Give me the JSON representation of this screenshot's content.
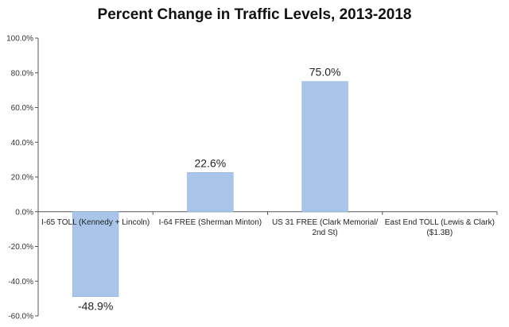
{
  "chart_data": {
    "type": "bar",
    "title": "Percent Change in Traffic Levels, 2013-2018",
    "xlabel": "",
    "ylabel": "",
    "categories": [
      [
        "I-65 TOLL (Kennedy + Lincoln)"
      ],
      [
        "I-64 FREE (Sherman Minton)"
      ],
      [
        "US 31 FREE (Clark Memorial/",
        "2nd St)"
      ],
      [
        "East End TOLL (Lewis & Clark)",
        "($1.3B)"
      ]
    ],
    "values": [
      -48.9,
      22.6,
      75.0,
      null
    ],
    "data_labels": [
      "-48.9%",
      "22.6%",
      "75.0%",
      ""
    ],
    "ylim": [
      -60,
      100
    ],
    "yticks": [
      100,
      80,
      60,
      40,
      20,
      0,
      -20,
      -40,
      -60
    ],
    "ytick_labels": [
      "100.0%",
      "80.0%",
      "60.0%",
      "40.0%",
      "20.0%",
      "0.0%",
      "-20.0%",
      "-40.0%",
      "-60.0%"
    ],
    "grid": false,
    "legend": "none",
    "bar_color": "#a9c5ea",
    "bar_stroke": "#8fb0db",
    "axis_color": "#555555"
  }
}
